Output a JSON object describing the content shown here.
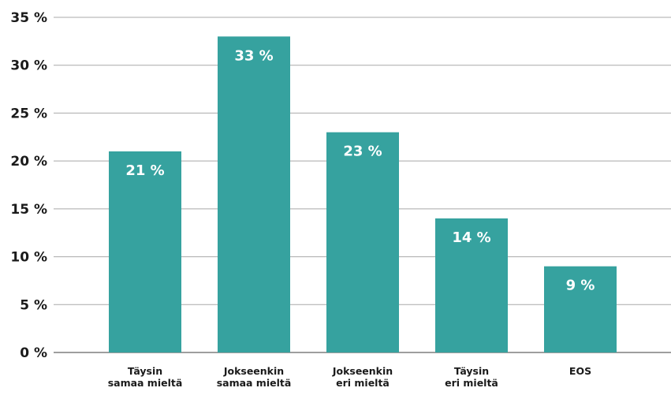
{
  "chart_data": {
    "type": "bar",
    "categories": [
      [
        "Täysin",
        "samaa mieltä"
      ],
      [
        "Jokseenkin",
        "samaa mieltä"
      ],
      [
        "Jokseenkin",
        "eri mieltä"
      ],
      [
        "Täysin",
        "eri mieltä"
      ],
      [
        "EOS"
      ]
    ],
    "values": [
      21,
      33,
      23,
      14,
      9
    ],
    "data_labels": [
      "21 %",
      "33 %",
      "23 %",
      "14 %",
      "9 %"
    ],
    "y_ticks": [
      0,
      5,
      10,
      15,
      20,
      25,
      30,
      35
    ],
    "y_tick_labels": [
      "0 %",
      "5 %",
      "10 %",
      "15 %",
      "20 %",
      "25 %",
      "30 %",
      "35 %"
    ],
    "ylim": [
      0,
      35
    ],
    "grid": true,
    "bar_color": "#36a29f",
    "grid_color": "#a9a9a9"
  }
}
